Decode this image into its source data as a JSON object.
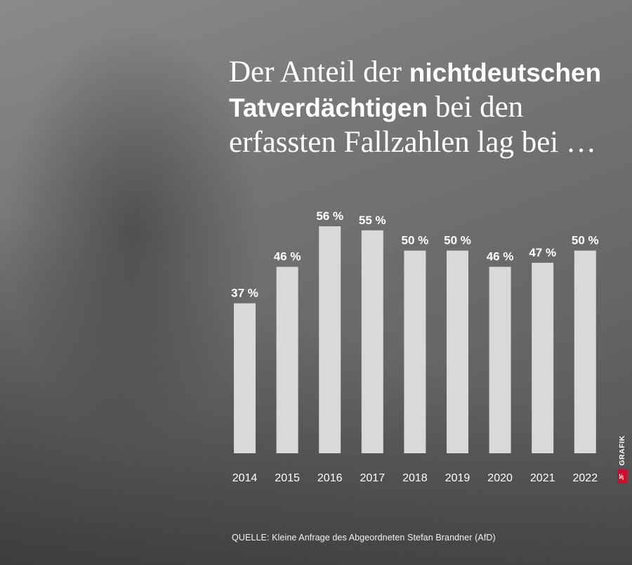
{
  "title": {
    "part1": "Der Anteil der ",
    "bold": "nichtdeutschen Tatverdächtigen",
    "part2": " bei den erfassten Fallzahlen lag bei …"
  },
  "source": "QUELLE: Kleine Anfrage des Abgeordneten Stefan Brandner (AfD)",
  "brand": {
    "label": "GRAFIK",
    "badge": "JF",
    "badge_color": "#c8102e"
  },
  "colors": {
    "bar": "#d9d9d9",
    "text": "#ffffff"
  },
  "chart_data": {
    "type": "bar",
    "categories": [
      "2014",
      "2015",
      "2016",
      "2017",
      "2018",
      "2019",
      "2020",
      "2021",
      "2022"
    ],
    "values": [
      37,
      46,
      56,
      55,
      50,
      50,
      46,
      47,
      50
    ],
    "data_labels": [
      "37 %",
      "46 %",
      "56 %",
      "55 %",
      "50 %",
      "50 %",
      "46 %",
      "47 %",
      "50 %"
    ],
    "unit": "%",
    "ylim": [
      0,
      56
    ],
    "grid": false,
    "legend": "none",
    "title": "Der Anteil der nichtdeutschen Tatverdächtigen bei den erfassten Fallzahlen lag bei …"
  }
}
